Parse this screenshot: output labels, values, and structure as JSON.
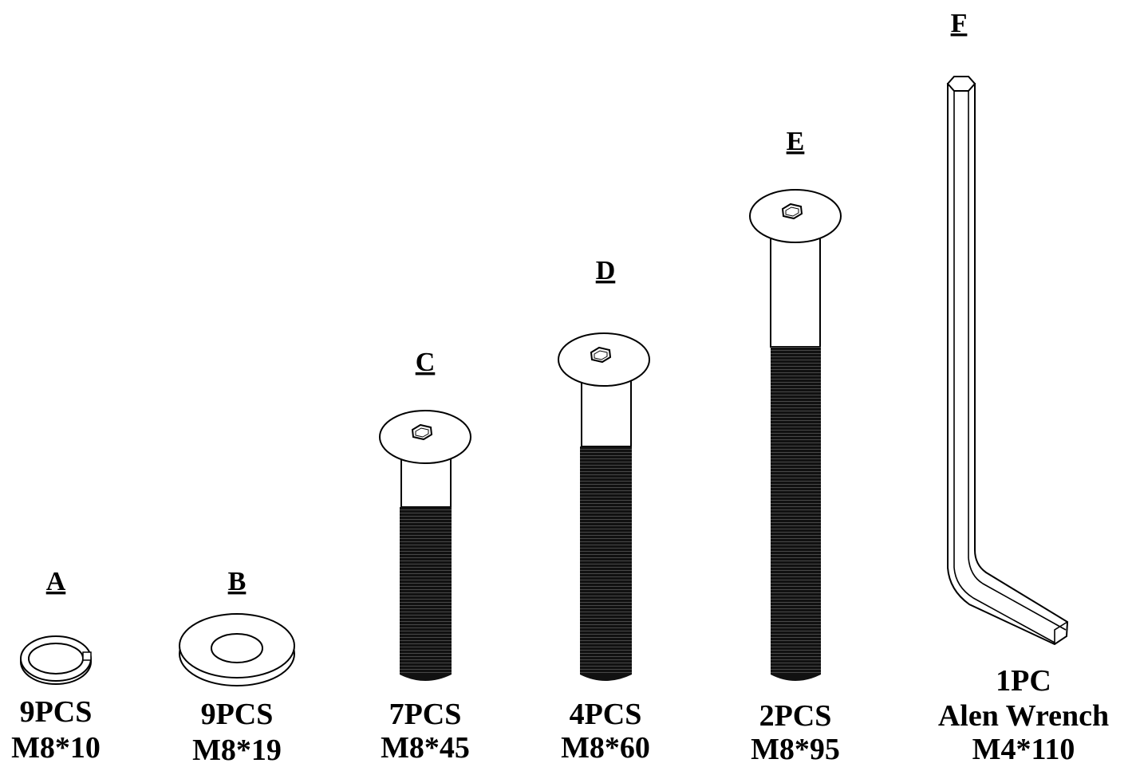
{
  "parts": {
    "a": {
      "letter": "A",
      "qty": "9PCS",
      "size": "M8*10"
    },
    "b": {
      "letter": "B",
      "qty": "9PCS",
      "size": "M8*19"
    },
    "c": {
      "letter": "C",
      "qty": "7PCS",
      "size": "M8*45"
    },
    "d": {
      "letter": "D",
      "qty": "4PCS",
      "size": "M8*60"
    },
    "e": {
      "letter": "E",
      "qty": "2PCS",
      "size": "M8*95"
    },
    "f": {
      "letter": "F",
      "qty": "1PC",
      "name": "Alen Wrench",
      "size": "M4*110"
    }
  }
}
